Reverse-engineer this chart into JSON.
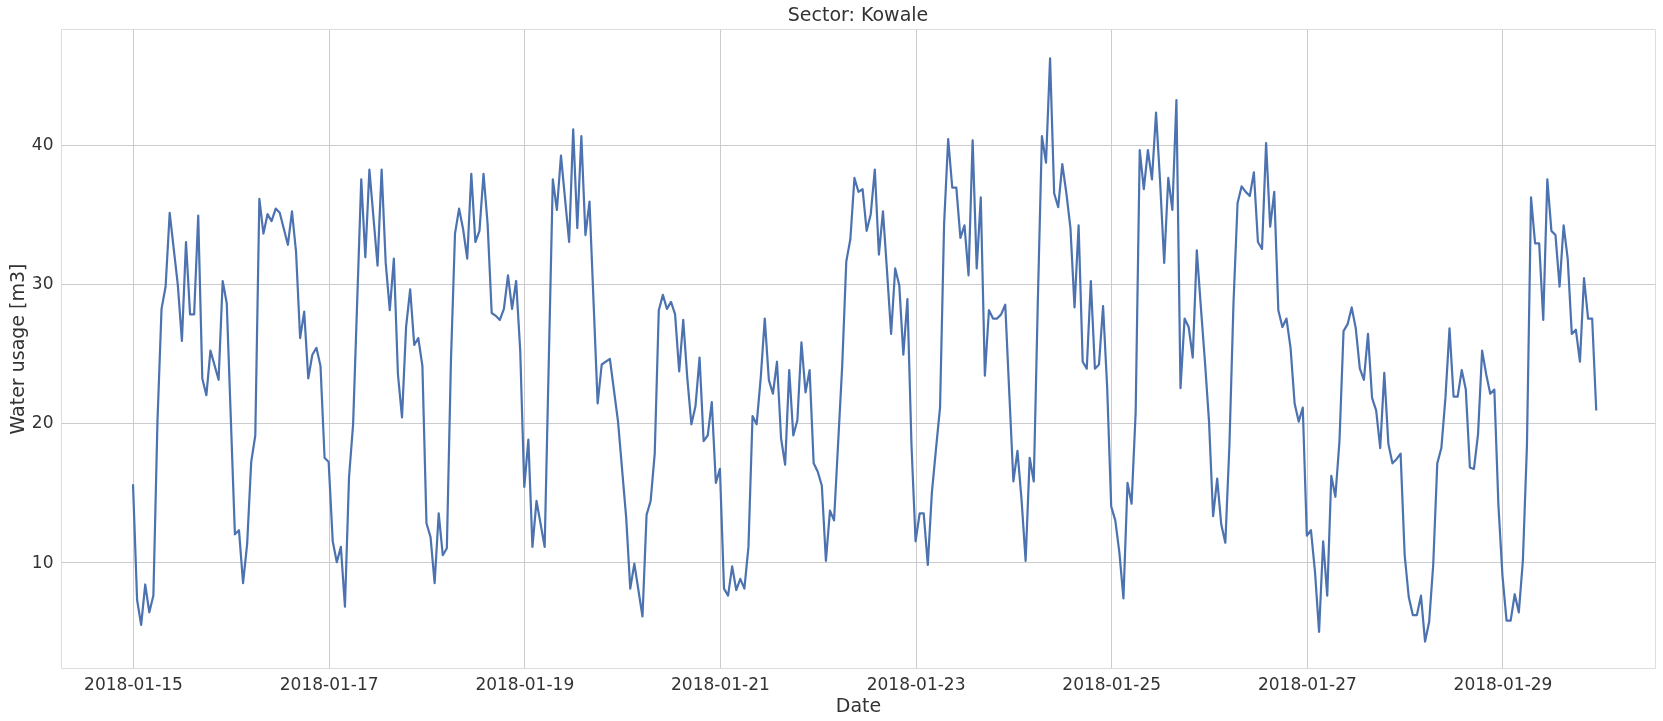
{
  "chart_data": {
    "type": "line",
    "title": "Sector: Kowale",
    "xlabel": "Date",
    "ylabel": "Water usage [m3]",
    "grid": true,
    "xlim": [
      "2018-01-14T06:20",
      "2018-01-30T13:25"
    ],
    "xticks": [
      "2018-01-15",
      "2018-01-17",
      "2018-01-19",
      "2018-01-21",
      "2018-01-23",
      "2018-01-25",
      "2018-01-27",
      "2018-01-29"
    ],
    "ylim": [
      2.4,
      48.3
    ],
    "yticks": [
      10,
      20,
      30,
      40
    ],
    "series": [
      {
        "color": "#4c72b0",
        "x": [
          "2018-01-15T00:00",
          "2018-01-15T01:00",
          "2018-01-15T02:00",
          "2018-01-15T03:00",
          "2018-01-15T04:00",
          "2018-01-15T05:00",
          "2018-01-15T06:00",
          "2018-01-15T07:00",
          "2018-01-15T08:00",
          "2018-01-15T09:00",
          "2018-01-15T11:00",
          "2018-01-15T12:00",
          "2018-01-15T13:00",
          "2018-01-15T14:00",
          "2018-01-15T15:00",
          "2018-01-15T16:00",
          "2018-01-15T17:00",
          "2018-01-15T18:00",
          "2018-01-15T19:00",
          "2018-01-15T21:00",
          "2018-01-15T22:00",
          "2018-01-15T23:00",
          "2018-01-16T01:00",
          "2018-01-16T02:00",
          "2018-01-16T03:00",
          "2018-01-16T04:00",
          "2018-01-16T05:00",
          "2018-01-16T06:00",
          "2018-01-16T07:00",
          "2018-01-16T08:00",
          "2018-01-16T09:00",
          "2018-01-16T10:00",
          "2018-01-16T11:00",
          "2018-01-16T12:00",
          "2018-01-16T14:00",
          "2018-01-16T15:00",
          "2018-01-16T16:00",
          "2018-01-16T17:00",
          "2018-01-16T18:00",
          "2018-01-16T19:00",
          "2018-01-16T20:00",
          "2018-01-16T21:00",
          "2018-01-16T22:00",
          "2018-01-16T23:00",
          "2018-01-17T00:00",
          "2018-01-17T01:00",
          "2018-01-17T02:00",
          "2018-01-17T03:00",
          "2018-01-17T04:00",
          "2018-01-17T05:00",
          "2018-01-17T06:00",
          "2018-01-17T08:00",
          "2018-01-17T09:00",
          "2018-01-17T10:00",
          "2018-01-17T12:00",
          "2018-01-17T13:00",
          "2018-01-17T14:00",
          "2018-01-17T15:00",
          "2018-01-17T16:00",
          "2018-01-17T17:00",
          "2018-01-17T18:00",
          "2018-01-17T19:00",
          "2018-01-17T20:00",
          "2018-01-17T21:00",
          "2018-01-17T22:00",
          "2018-01-17T23:00",
          "2018-01-18T00:00",
          "2018-01-18T01:00",
          "2018-01-18T02:00",
          "2018-01-18T03:00",
          "2018-01-18T04:00",
          "2018-01-18T05:00",
          "2018-01-18T06:00",
          "2018-01-18T07:00",
          "2018-01-18T08:00",
          "2018-01-18T09:00",
          "2018-01-18T10:00",
          "2018-01-18T11:00",
          "2018-01-18T12:00",
          "2018-01-18T13:00",
          "2018-01-18T14:00",
          "2018-01-18T15:00",
          "2018-01-18T16:00",
          "2018-01-18T17:00",
          "2018-01-18T18:00",
          "2018-01-18T19:00",
          "2018-01-18T20:00",
          "2018-01-18T21:00",
          "2018-01-18T22:00",
          "2018-01-18T23:00",
          "2018-01-19T00:00",
          "2018-01-19T01:00",
          "2018-01-19T02:00",
          "2018-01-19T03:00",
          "2018-01-19T05:00",
          "2018-01-19T07:00",
          "2018-01-19T08:00",
          "2018-01-19T09:00",
          "2018-01-19T11:00",
          "2018-01-19T12:00",
          "2018-01-19T13:00",
          "2018-01-19T14:00",
          "2018-01-19T15:00",
          "2018-01-19T16:00",
          "2018-01-19T18:00",
          "2018-01-19T19:00",
          "2018-01-19T21:00",
          "2018-01-19T23:00",
          "2018-01-20T01:00",
          "2018-01-20T02:00",
          "2018-01-20T03:00",
          "2018-01-20T05:00",
          "2018-01-20T06:00",
          "2018-01-20T07:00",
          "2018-01-20T08:00",
          "2018-01-20T09:00",
          "2018-01-20T10:00",
          "2018-01-20T11:00",
          "2018-01-20T12:00",
          "2018-01-20T13:00",
          "2018-01-20T14:00",
          "2018-01-20T15:00",
          "2018-01-20T16:00",
          "2018-01-20T17:00",
          "2018-01-20T18:00",
          "2018-01-20T19:00",
          "2018-01-20T20:00",
          "2018-01-20T21:00",
          "2018-01-20T22:00",
          "2018-01-20T23:00",
          "2018-01-21T00:00",
          "2018-01-21T01:00",
          "2018-01-21T02:00",
          "2018-01-21T03:00",
          "2018-01-21T04:00",
          "2018-01-21T05:00",
          "2018-01-21T06:00",
          "2018-01-21T07:00",
          "2018-01-21T08:00",
          "2018-01-21T09:00",
          "2018-01-21T10:00",
          "2018-01-21T11:00",
          "2018-01-21T12:00",
          "2018-01-21T13:00",
          "2018-01-21T14:00",
          "2018-01-21T15:00",
          "2018-01-21T16:00",
          "2018-01-21T17:00",
          "2018-01-21T18:00",
          "2018-01-21T19:00",
          "2018-01-21T20:00",
          "2018-01-21T21:00",
          "2018-01-21T22:00",
          "2018-01-21T23:00",
          "2018-01-22T00:00",
          "2018-01-22T01:00",
          "2018-01-22T02:00",
          "2018-01-22T03:00",
          "2018-01-22T04:00",
          "2018-01-22T06:00",
          "2018-01-22T07:00",
          "2018-01-22T08:00",
          "2018-01-22T09:00",
          "2018-01-22T10:00",
          "2018-01-22T11:00",
          "2018-01-22T12:00",
          "2018-01-22T13:00",
          "2018-01-22T14:00",
          "2018-01-22T15:00",
          "2018-01-22T16:00",
          "2018-01-22T17:00",
          "2018-01-22T18:00",
          "2018-01-22T19:00",
          "2018-01-22T20:00",
          "2018-01-22T21:00",
          "2018-01-22T22:00",
          "2018-01-22T23:00",
          "2018-01-23T00:00",
          "2018-01-23T01:00",
          "2018-01-23T02:00",
          "2018-01-23T03:00",
          "2018-01-23T04:00",
          "2018-01-23T05:00",
          "2018-01-23T06:00",
          "2018-01-23T07:00",
          "2018-01-23T08:00",
          "2018-01-23T09:00",
          "2018-01-23T10:00",
          "2018-01-23T11:00",
          "2018-01-23T12:00",
          "2018-01-23T13:00",
          "2018-01-23T14:00",
          "2018-01-23T15:00",
          "2018-01-23T16:00",
          "2018-01-23T17:00",
          "2018-01-23T18:00",
          "2018-01-23T19:00",
          "2018-01-23T20:00",
          "2018-01-23T21:00",
          "2018-01-23T22:00",
          "2018-01-23T23:00",
          "2018-01-24T00:00",
          "2018-01-24T01:00",
          "2018-01-24T02:00",
          "2018-01-24T03:00",
          "2018-01-24T04:00",
          "2018-01-24T05:00",
          "2018-01-24T06:00",
          "2018-01-24T07:00",
          "2018-01-24T08:00",
          "2018-01-24T09:00",
          "2018-01-24T10:00",
          "2018-01-24T11:00",
          "2018-01-24T12:00",
          "2018-01-24T13:00",
          "2018-01-24T14:00",
          "2018-01-24T15:00",
          "2018-01-24T16:00",
          "2018-01-24T17:00",
          "2018-01-24T18:00",
          "2018-01-24T19:00",
          "2018-01-24T20:00",
          "2018-01-24T21:00",
          "2018-01-24T22:00",
          "2018-01-24T23:00",
          "2018-01-25T00:00",
          "2018-01-25T01:00",
          "2018-01-25T02:00",
          "2018-01-25T03:00",
          "2018-01-25T04:00",
          "2018-01-25T05:00",
          "2018-01-25T06:00",
          "2018-01-25T07:00",
          "2018-01-25T08:00",
          "2018-01-25T09:00",
          "2018-01-25T10:00",
          "2018-01-25T11:00",
          "2018-01-25T12:00",
          "2018-01-25T13:00",
          "2018-01-25T14:00",
          "2018-01-25T15:00",
          "2018-01-25T16:00",
          "2018-01-25T17:00",
          "2018-01-25T18:00",
          "2018-01-25T19:00",
          "2018-01-25T20:00",
          "2018-01-25T21:00",
          "2018-01-25T22:00",
          "2018-01-25T23:00",
          "2018-01-26T00:00",
          "2018-01-26T01:00",
          "2018-01-26T02:00",
          "2018-01-26T03:00",
          "2018-01-26T04:00",
          "2018-01-26T05:00",
          "2018-01-26T06:00",
          "2018-01-26T07:00",
          "2018-01-26T08:00",
          "2018-01-26T09:00",
          "2018-01-26T10:00",
          "2018-01-26T11:00",
          "2018-01-26T12:00",
          "2018-01-26T13:00",
          "2018-01-26T14:00",
          "2018-01-26T15:00",
          "2018-01-26T16:00",
          "2018-01-26T17:00",
          "2018-01-26T18:00",
          "2018-01-26T19:00",
          "2018-01-26T20:00",
          "2018-01-26T21:00",
          "2018-01-26T22:00",
          "2018-01-26T23:00",
          "2018-01-27T00:00",
          "2018-01-27T01:00",
          "2018-01-27T02:00",
          "2018-01-27T03:00",
          "2018-01-27T04:00",
          "2018-01-27T05:00",
          "2018-01-27T06:00",
          "2018-01-27T07:00",
          "2018-01-27T08:00",
          "2018-01-27T09:00",
          "2018-01-27T10:00",
          "2018-01-27T11:00",
          "2018-01-27T12:00",
          "2018-01-27T13:00",
          "2018-01-27T14:00",
          "2018-01-27T15:00",
          "2018-01-27T16:00",
          "2018-01-27T17:00",
          "2018-01-27T18:00",
          "2018-01-27T19:00",
          "2018-01-27T20:00",
          "2018-01-27T21:00",
          "2018-01-27T22:00",
          "2018-01-27T23:00",
          "2018-01-28T00:00",
          "2018-01-28T01:00",
          "2018-01-28T02:00",
          "2018-01-28T03:00",
          "2018-01-28T04:00",
          "2018-01-28T05:00",
          "2018-01-28T06:00",
          "2018-01-28T07:00",
          "2018-01-28T08:00",
          "2018-01-28T09:00",
          "2018-01-28T10:00",
          "2018-01-28T11:00",
          "2018-01-28T12:00",
          "2018-01-28T13:00",
          "2018-01-28T14:00",
          "2018-01-28T15:00",
          "2018-01-28T16:00",
          "2018-01-28T17:00",
          "2018-01-28T18:00",
          "2018-01-28T19:00",
          "2018-01-28T20:00",
          "2018-01-28T21:00",
          "2018-01-28T22:00",
          "2018-01-28T23:00",
          "2018-01-29T00:00",
          "2018-01-29T01:00",
          "2018-01-29T02:00",
          "2018-01-29T03:00",
          "2018-01-29T04:00",
          "2018-01-29T05:00",
          "2018-01-29T06:00",
          "2018-01-29T07:00",
          "2018-01-29T08:00",
          "2018-01-29T09:00",
          "2018-01-29T10:00",
          "2018-01-29T11:00",
          "2018-01-29T12:00",
          "2018-01-29T13:00",
          "2018-01-29T14:00",
          "2018-01-29T15:00",
          "2018-01-29T16:00",
          "2018-01-29T17:00",
          "2018-01-29T18:00",
          "2018-01-29T19:00",
          "2018-01-29T20:00",
          "2018-01-29T21:00",
          "2018-01-29T22:00",
          "2018-01-29T23:00"
        ],
        "values": [
          15.6,
          7.3,
          5.5,
          8.4,
          6.4,
          7.6,
          20.1,
          28.2,
          29.8,
          35.1,
          29.9,
          25.9,
          33.0,
          27.8,
          27.8,
          34.9,
          23.2,
          22.0,
          25.2,
          23.1,
          30.2,
          28.6,
          12.0,
          12.3,
          8.5,
          11.3,
          17.2,
          19.1,
          36.1,
          33.6,
          35.0,
          34.5,
          35.4,
          35.1,
          32.8,
          35.2,
          32.3,
          26.1,
          28.0,
          23.2,
          24.9,
          25.4,
          24.1,
          17.5,
          17.2,
          11.5,
          10.0,
          11.1,
          6.8,
          16.1,
          19.9,
          37.5,
          31.9,
          38.2,
          31.3,
          38.2,
          31.5,
          28.1,
          31.8,
          23.5,
          20.4,
          26.9,
          29.6,
          25.6,
          26.1,
          24.1,
          12.8,
          11.8,
          8.5,
          13.5,
          10.5,
          11.0,
          24.4,
          33.6,
          35.4,
          33.9,
          31.8,
          37.9,
          33.0,
          33.8,
          37.9,
          34.3,
          27.9,
          27.7,
          27.4,
          28.2,
          30.6,
          28.2,
          30.2,
          25.2,
          15.4,
          18.8,
          11.1,
          14.4,
          11.1,
          37.5,
          35.3,
          39.2,
          33.0,
          41.1,
          34.0,
          40.6,
          33.5,
          35.9,
          21.4,
          24.2,
          24.6,
          20.1,
          13.2,
          8.1,
          9.9,
          6.1,
          13.4,
          14.4,
          17.8,
          28.1,
          29.2,
          28.2,
          28.7,
          27.8,
          23.7,
          27.4,
          23.2,
          19.9,
          21.2,
          24.7,
          18.7,
          19.1,
          21.5,
          15.7,
          16.7,
          8.1,
          7.6,
          9.7,
          8.0,
          8.8,
          8.1,
          11.1,
          20.5,
          19.9,
          23.2,
          27.5,
          23.1,
          22.1,
          24.4,
          18.9,
          17.0,
          23.8,
          19.1,
          20.2,
          25.8,
          22.2,
          23.8,
          17.1,
          16.5,
          15.5,
          10.1,
          13.7,
          13.0,
          24.1,
          31.6,
          33.2,
          37.6,
          36.6,
          36.8,
          33.8,
          35.0,
          38.2,
          32.1,
          35.2,
          30.9,
          26.4,
          31.1,
          29.9,
          24.9,
          28.9,
          18.4,
          11.5,
          13.5,
          13.5,
          9.8,
          15.0,
          18.1,
          21.1,
          34.3,
          40.4,
          36.9,
          36.9,
          33.3,
          34.2,
          30.6,
          40.3,
          31.1,
          36.2,
          23.4,
          28.1,
          27.5,
          27.5,
          27.8,
          28.5,
          22.1,
          15.8,
          18.0,
          14.5,
          10.1,
          17.5,
          15.8,
          28.8,
          40.6,
          38.7,
          46.2,
          36.5,
          35.5,
          38.6,
          36.5,
          34.0,
          28.3,
          34.2,
          24.4,
          23.9,
          30.2,
          23.9,
          24.2,
          28.4,
          22.6,
          14.0,
          13.0,
          10.7,
          7.4,
          15.7,
          14.2,
          20.8,
          39.6,
          36.8,
          39.6,
          37.5,
          42.3,
          37.3,
          31.5,
          37.6,
          35.3,
          43.2,
          22.5,
          27.5,
          26.9,
          24.7,
          32.4,
          28.3,
          24.4,
          20.1,
          13.3,
          16.0,
          12.7,
          11.4,
          18.4,
          28.6,
          35.8,
          37.0,
          36.6,
          36.3,
          38.0,
          33.0,
          32.5,
          40.1,
          34.1,
          36.6,
          28.1,
          26.9,
          27.5,
          25.4,
          21.4,
          20.1,
          21.1,
          11.9,
          12.3,
          9.3,
          5.0,
          11.5,
          7.6,
          16.2,
          14.7,
          18.7,
          26.6,
          27.1,
          28.3,
          26.8,
          23.9,
          23.1,
          26.4,
          21.8,
          20.9,
          18.2,
          23.6,
          18.5,
          17.1,
          17.4,
          17.8,
          10.5,
          7.5,
          6.2,
          6.2,
          7.6,
          4.3,
          5.7,
          9.8,
          17.1,
          18.2,
          21.8,
          26.8,
          21.9,
          21.9,
          23.8,
          22.4,
          16.8,
          16.7,
          19.2,
          25.2,
          23.5,
          22.1,
          22.4,
          14.1,
          9.0,
          5.8,
          5.8,
          7.7,
          6.4,
          10.1,
          18.4,
          36.2,
          32.9,
          32.9,
          27.4,
          37.5,
          33.8,
          33.5,
          29.8,
          34.2,
          31.8,
          26.4,
          26.7,
          24.4,
          30.4,
          27.5,
          27.5,
          20.9
        ]
      }
    ]
  }
}
